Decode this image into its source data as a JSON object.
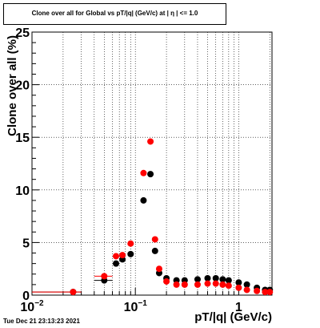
{
  "plot_title": "Clone  over all for Global vs pT/|q| (GeV/c) at |  η | <= 1.0",
  "timestamp": "Tue Dec 21 23:13:23 2021",
  "chart_data": {
    "type": "scatter",
    "title": "Clone  over all for Global vs pT/|q| (GeV/c) at |  η | <= 1.0",
    "xlabel": "pT/|q| (GeV/c)",
    "ylabel": "Clone  over all (%)",
    "x_scale": "log",
    "xlim": [
      0.01,
      2.1
    ],
    "ylim": [
      0,
      25
    ],
    "grid": true,
    "y_ticks": [
      0,
      5,
      10,
      15,
      20,
      25
    ],
    "x_tick_labels": [
      {
        "value": 0.01,
        "label": "10",
        "exp": "−2"
      },
      {
        "value": 0.1,
        "label": "10",
        "exp": "−1"
      },
      {
        "value": 1,
        "label": "1",
        "exp": ""
      }
    ],
    "series": [
      {
        "color": "#000000",
        "x": [
          0.025,
          0.05,
          0.065,
          0.075,
          0.09,
          0.12,
          0.14,
          0.155,
          0.17,
          0.2,
          0.25,
          0.3,
          0.4,
          0.5,
          0.6,
          0.7,
          0.8,
          1.0,
          1.2,
          1.5,
          1.8,
          2.0
        ],
        "y": [
          0.3,
          1.4,
          3.0,
          3.4,
          3.9,
          9.0,
          11.5,
          4.2,
          2.1,
          1.6,
          1.4,
          1.4,
          1.5,
          1.6,
          1.6,
          1.5,
          1.4,
          1.2,
          1.0,
          0.7,
          0.5,
          0.5
        ],
        "xerr_lo": [
          0.015,
          0.01,
          0,
          0,
          0,
          0,
          0,
          0,
          0,
          0,
          0,
          0,
          0,
          0,
          0,
          0,
          0,
          0,
          0,
          0,
          0,
          0
        ],
        "xerr_hi": [
          0.005,
          0.01,
          0,
          0,
          0,
          0,
          0,
          0,
          0,
          0,
          0,
          0,
          0,
          0,
          0,
          0,
          0,
          0,
          0,
          0,
          0,
          0
        ]
      },
      {
        "color": "#ff0000",
        "x": [
          0.025,
          0.05,
          0.065,
          0.075,
          0.09,
          0.12,
          0.14,
          0.155,
          0.17,
          0.2,
          0.25,
          0.3,
          0.4,
          0.5,
          0.6,
          0.7,
          0.8,
          1.0,
          1.2,
          1.5,
          1.8,
          2.0
        ],
        "y": [
          0.3,
          1.8,
          3.7,
          3.8,
          4.9,
          11.6,
          14.6,
          5.3,
          2.5,
          1.3,
          1.0,
          1.0,
          1.0,
          1.1,
          1.1,
          1.0,
          0.9,
          0.7,
          0.5,
          0.4,
          0.3,
          0.3
        ],
        "xerr_lo": [
          0.015,
          0.01,
          0,
          0,
          0,
          0,
          0,
          0,
          0,
          0,
          0,
          0,
          0,
          0,
          0,
          0,
          0,
          0,
          0,
          0,
          0,
          0
        ],
        "xerr_hi": [
          0.005,
          0.01,
          0,
          0,
          0,
          0,
          0,
          0,
          0,
          0,
          0,
          0,
          0,
          0,
          0,
          0,
          0,
          0,
          0,
          0,
          0,
          0
        ]
      }
    ]
  }
}
